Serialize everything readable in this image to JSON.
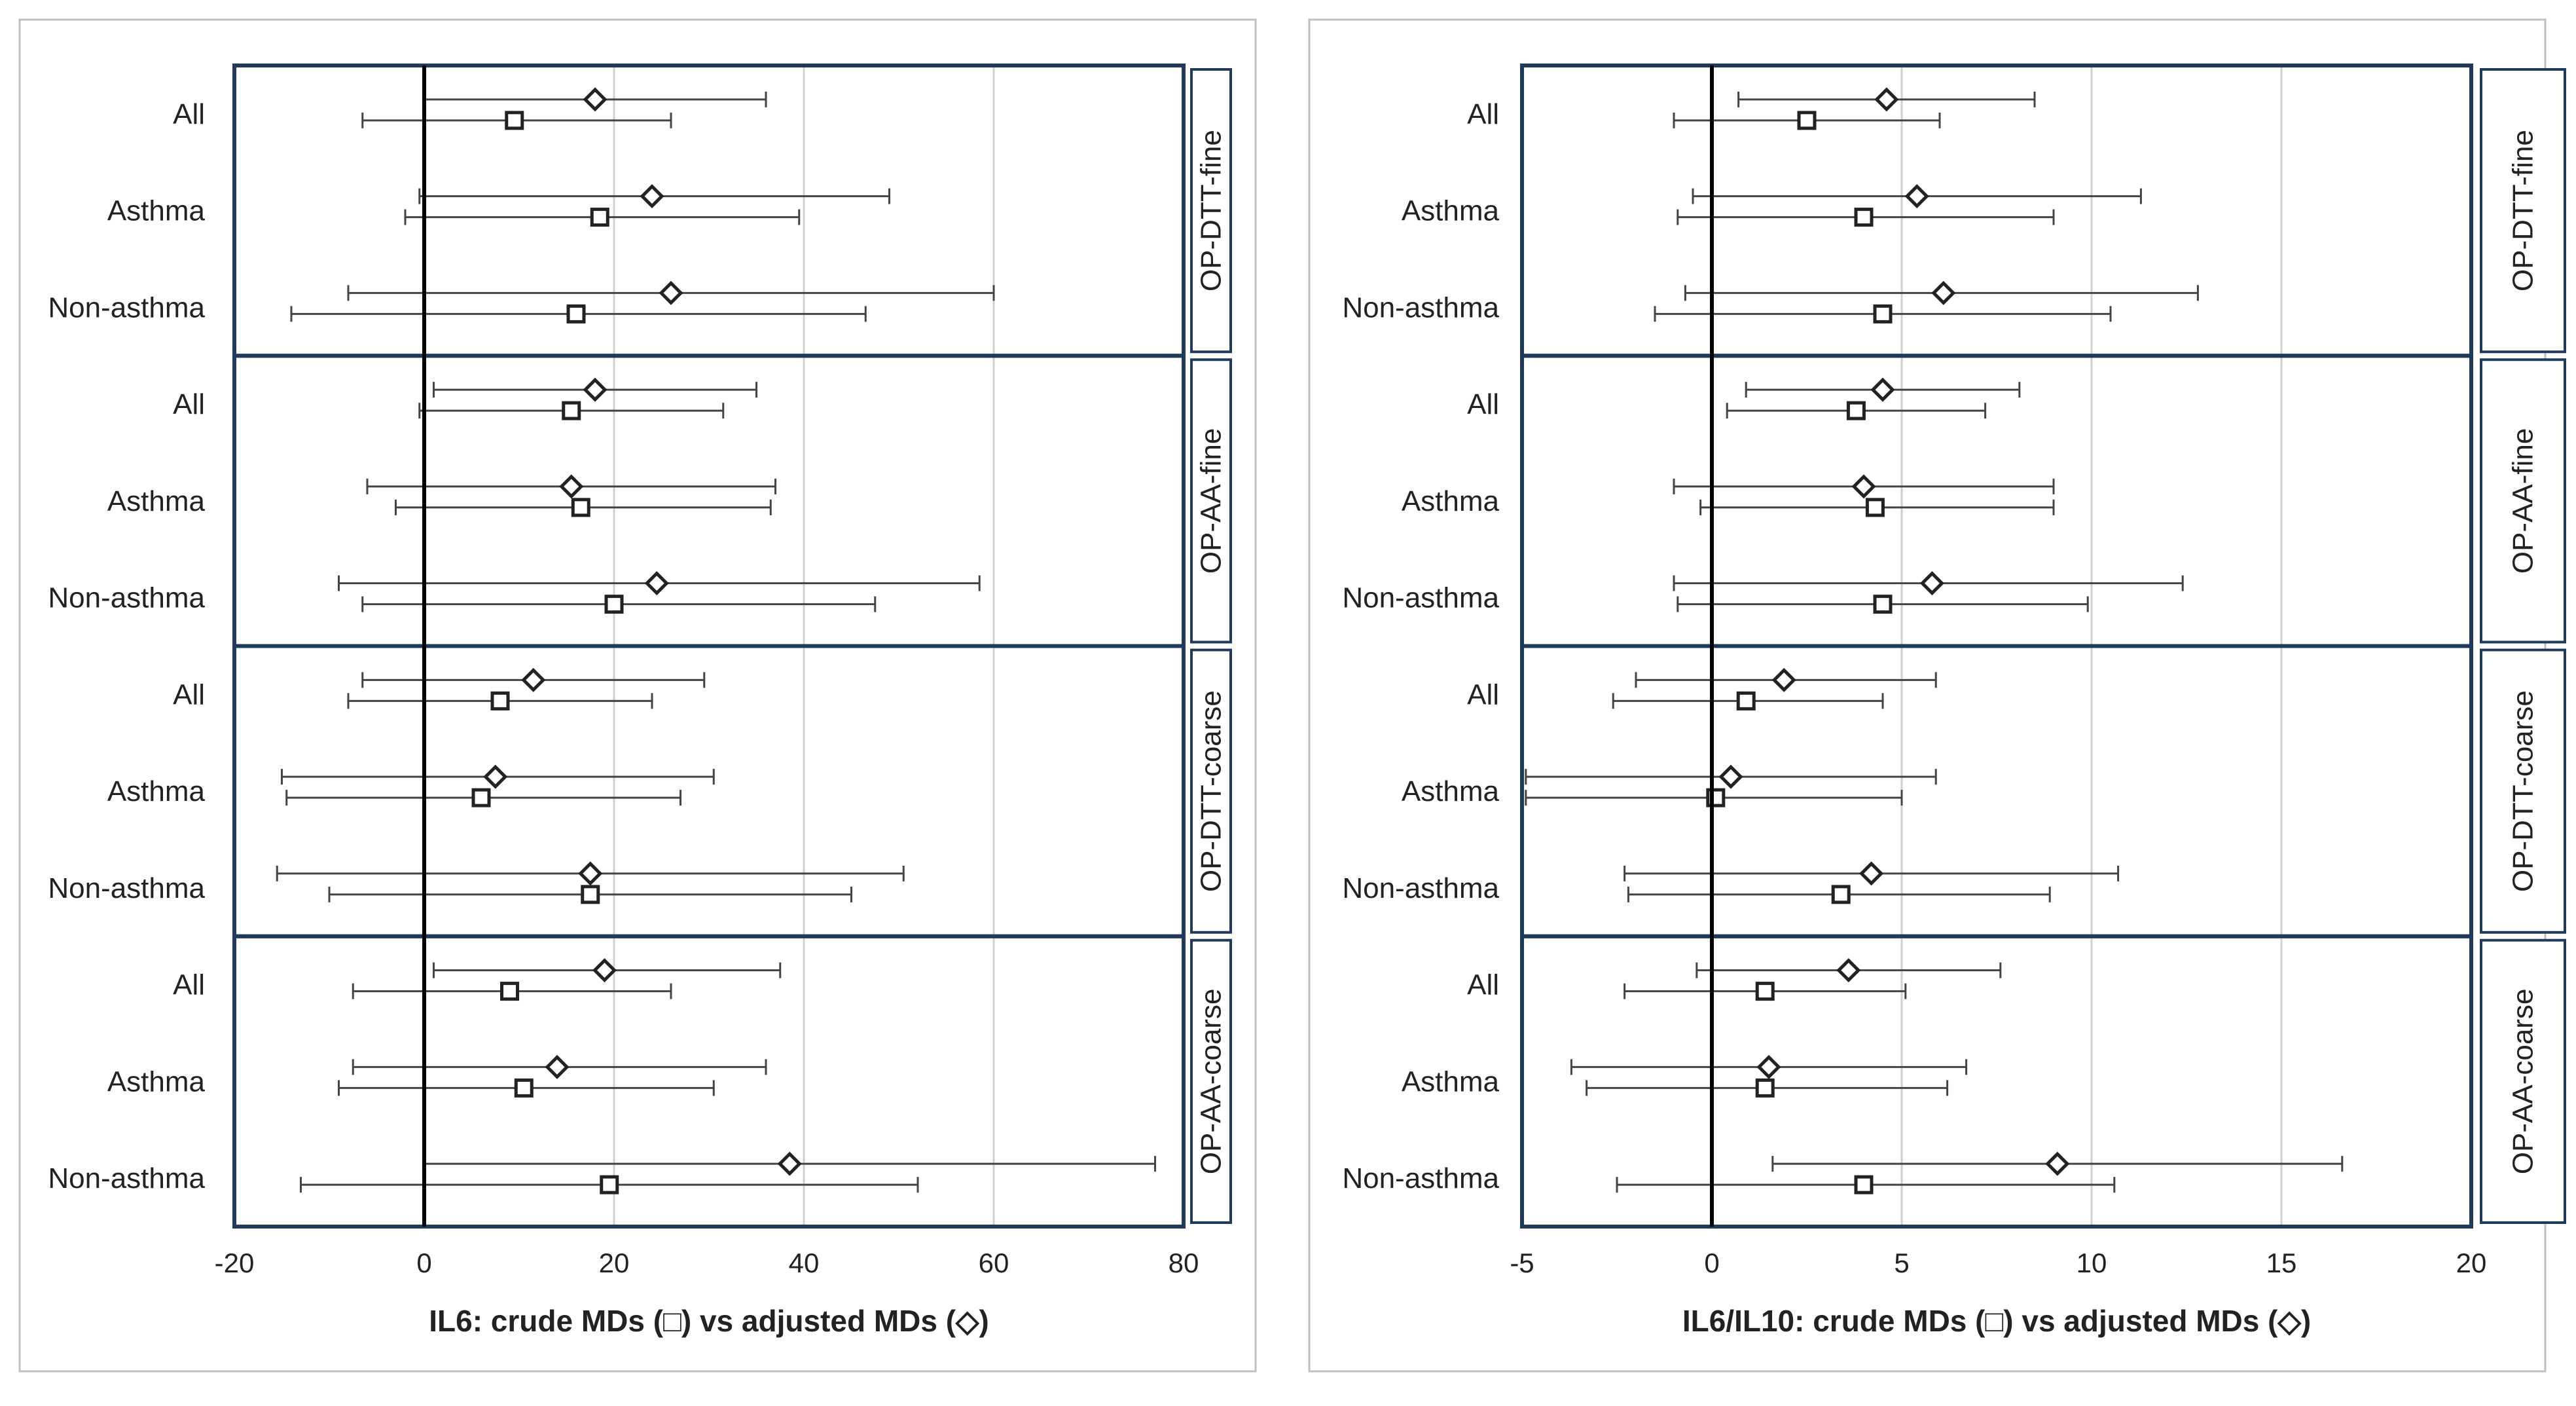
{
  "colors": {
    "frame": "#1f3a5a",
    "outer_border": "#bfbfbf",
    "grid": "#d0d0d0",
    "zero_line": "#000000",
    "marker": "#222222",
    "whisker": "#444444",
    "text": "#222222"
  },
  "chart_data": [
    {
      "type": "forest",
      "xlabel": "IL6: crude MDs (□) vs adjusted MDs (◇)",
      "xlim": [
        -20,
        80
      ],
      "xticks": [
        -20,
        0,
        20,
        40,
        60,
        80
      ],
      "xtick_labels": [
        "-20",
        "0",
        "20",
        "40",
        "60",
        "80"
      ],
      "grid": true,
      "legend": "in x-axis label",
      "marker_legend": {
        "crude": "square",
        "adjusted": "diamond"
      },
      "groups": [
        {
          "name": "OP-DTT-fine",
          "rows": [
            {
              "label": "All",
              "adjusted": {
                "est": 18,
                "lo": 0,
                "hi": 36
              },
              "crude": {
                "est": 9.5,
                "lo": -6.5,
                "hi": 26
              }
            },
            {
              "label": "Asthma",
              "adjusted": {
                "est": 24,
                "lo": -0.5,
                "hi": 49
              },
              "crude": {
                "est": 18.5,
                "lo": -2,
                "hi": 39.5
              }
            },
            {
              "label": "Non-asthma",
              "adjusted": {
                "est": 26,
                "lo": -8,
                "hi": 60
              },
              "crude": {
                "est": 16,
                "lo": -14,
                "hi": 46.5
              }
            }
          ]
        },
        {
          "name": "OP-AA-fine",
          "rows": [
            {
              "label": "All",
              "adjusted": {
                "est": 18,
                "lo": 1,
                "hi": 35
              },
              "crude": {
                "est": 15.5,
                "lo": -0.5,
                "hi": 31.5
              }
            },
            {
              "label": "Asthma",
              "adjusted": {
                "est": 15.5,
                "lo": -6,
                "hi": 37
              },
              "crude": {
                "est": 16.5,
                "lo": -3,
                "hi": 36.5
              }
            },
            {
              "label": "Non-asthma",
              "adjusted": {
                "est": 24.5,
                "lo": -9,
                "hi": 58.5
              },
              "crude": {
                "est": 20,
                "lo": -6.5,
                "hi": 47.5
              }
            }
          ]
        },
        {
          "name": "OP-DTT-coarse",
          "rows": [
            {
              "label": "All",
              "adjusted": {
                "est": 11.5,
                "lo": -6.5,
                "hi": 29.5
              },
              "crude": {
                "est": 8,
                "lo": -8,
                "hi": 24
              }
            },
            {
              "label": "Asthma",
              "adjusted": {
                "est": 7.5,
                "lo": -15,
                "hi": 30.5
              },
              "crude": {
                "est": 6,
                "lo": -14.5,
                "hi": 27
              }
            },
            {
              "label": "Non-asthma",
              "adjusted": {
                "est": 17.5,
                "lo": -15.5,
                "hi": 50.5
              },
              "crude": {
                "est": 17.5,
                "lo": -10,
                "hi": 45
              }
            }
          ]
        },
        {
          "name": "OP-AA-coarse",
          "rows": [
            {
              "label": "All",
              "adjusted": {
                "est": 19,
                "lo": 1,
                "hi": 37.5
              },
              "crude": {
                "est": 9,
                "lo": -7.5,
                "hi": 26
              }
            },
            {
              "label": "Asthma",
              "adjusted": {
                "est": 14,
                "lo": -7.5,
                "hi": 36
              },
              "crude": {
                "est": 10.5,
                "lo": -9,
                "hi": 30.5
              }
            },
            {
              "label": "Non-asthma",
              "adjusted": {
                "est": 38.5,
                "lo": 0,
                "hi": 77
              },
              "crude": {
                "est": 19.5,
                "lo": -13,
                "hi": 52
              }
            }
          ]
        }
      ]
    },
    {
      "type": "forest",
      "xlabel": "IL6/IL10: crude MDs (□) vs adjusted MDs (◇)",
      "xlim": [
        -5,
        20
      ],
      "xticks": [
        -5,
        0,
        5,
        10,
        15,
        20
      ],
      "xtick_labels": [
        "-5",
        "0",
        "5",
        "10",
        "15",
        "20"
      ],
      "grid": true,
      "legend": "in x-axis label",
      "marker_legend": {
        "crude": "square",
        "adjusted": "diamond"
      },
      "groups": [
        {
          "name": "OP-DTT-fine",
          "rows": [
            {
              "label": "All",
              "adjusted": {
                "est": 4.6,
                "lo": 0.7,
                "hi": 8.5
              },
              "crude": {
                "est": 2.5,
                "lo": -1,
                "hi": 6
              }
            },
            {
              "label": "Asthma",
              "adjusted": {
                "est": 5.4,
                "lo": -0.5,
                "hi": 11.3
              },
              "crude": {
                "est": 4,
                "lo": -0.9,
                "hi": 9
              }
            },
            {
              "label": "Non-asthma",
              "adjusted": {
                "est": 6.1,
                "lo": -0.7,
                "hi": 12.8
              },
              "crude": {
                "est": 4.5,
                "lo": -1.5,
                "hi": 10.5
              }
            }
          ]
        },
        {
          "name": "OP-AA-fine",
          "rows": [
            {
              "label": "All",
              "adjusted": {
                "est": 4.5,
                "lo": 0.9,
                "hi": 8.1
              },
              "crude": {
                "est": 3.8,
                "lo": 0.4,
                "hi": 7.2
              }
            },
            {
              "label": "Asthma",
              "adjusted": {
                "est": 4,
                "lo": -1,
                "hi": 9
              },
              "crude": {
                "est": 4.3,
                "lo": -0.3,
                "hi": 9
              }
            },
            {
              "label": "Non-asthma",
              "adjusted": {
                "est": 5.8,
                "lo": -1,
                "hi": 12.4
              },
              "crude": {
                "est": 4.5,
                "lo": -0.9,
                "hi": 9.9
              }
            }
          ]
        },
        {
          "name": "OP-DTT-coarse",
          "rows": [
            {
              "label": "All",
              "adjusted": {
                "est": 1.9,
                "lo": -2,
                "hi": 5.9
              },
              "crude": {
                "est": 0.9,
                "lo": -2.6,
                "hi": 4.5
              }
            },
            {
              "label": "Asthma",
              "adjusted": {
                "est": 0.5,
                "lo": -4.9,
                "hi": 5.9
              },
              "crude": {
                "est": 0.1,
                "lo": -4.9,
                "hi": 5
              }
            },
            {
              "label": "Non-asthma",
              "adjusted": {
                "est": 4.2,
                "lo": -2.3,
                "hi": 10.7
              },
              "crude": {
                "est": 3.4,
                "lo": -2.2,
                "hi": 8.9
              }
            }
          ]
        },
        {
          "name": "OP-AA-coarse",
          "rows": [
            {
              "label": "All",
              "adjusted": {
                "est": 3.6,
                "lo": -0.4,
                "hi": 7.6
              },
              "crude": {
                "est": 1.4,
                "lo": -2.3,
                "hi": 5.1
              }
            },
            {
              "label": "Asthma",
              "adjusted": {
                "est": 1.5,
                "lo": -3.7,
                "hi": 6.7
              },
              "crude": {
                "est": 1.4,
                "lo": -3.3,
                "hi": 6.2
              }
            },
            {
              "label": "Non-asthma",
              "adjusted": {
                "est": 9.1,
                "lo": 1.6,
                "hi": 16.6
              },
              "crude": {
                "est": 4,
                "lo": -2.5,
                "hi": 10.6
              }
            }
          ]
        }
      ]
    }
  ]
}
